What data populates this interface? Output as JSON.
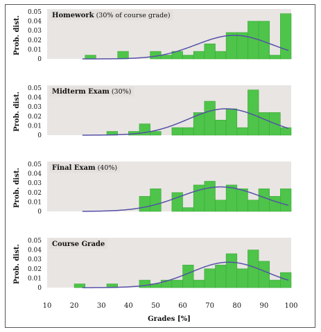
{
  "chart_data": [
    {
      "type": "bar",
      "title_bold": "Homework",
      "title_rest": " (30% of course grade)",
      "ylabel": "Prob. dist.",
      "yticks": [
        "0.05",
        "0.04",
        "0.03",
        "0.02",
        "0.01",
        "0"
      ],
      "ylim": [
        0,
        0.05
      ],
      "xlim": [
        10,
        100
      ],
      "bin_width": 4,
      "bins": [
        {
          "x": 22,
          "y": 0.0
        },
        {
          "x": 26,
          "y": 0.004
        },
        {
          "x": 30,
          "y": 0.0
        },
        {
          "x": 34,
          "y": 0.0
        },
        {
          "x": 38,
          "y": 0.008
        },
        {
          "x": 42,
          "y": 0.0
        },
        {
          "x": 46,
          "y": 0.0
        },
        {
          "x": 50,
          "y": 0.008
        },
        {
          "x": 54,
          "y": 0.004
        },
        {
          "x": 58,
          "y": 0.008
        },
        {
          "x": 62,
          "y": 0.004
        },
        {
          "x": 66,
          "y": 0.008
        },
        {
          "x": 70,
          "y": 0.016
        },
        {
          "x": 74,
          "y": 0.008
        },
        {
          "x": 78,
          "y": 0.028
        },
        {
          "x": 82,
          "y": 0.028
        },
        {
          "x": 86,
          "y": 0.04
        },
        {
          "x": 90,
          "y": 0.04
        },
        {
          "x": 94,
          "y": 0.004
        },
        {
          "x": 98,
          "y": 0.048
        }
      ],
      "fit": {
        "mean": 79,
        "sd": 14,
        "peak": 0.025,
        "xrange": [
          23,
          99
        ]
      }
    },
    {
      "type": "bar",
      "title_bold": "Midterm Exam",
      "title_rest": " (30%)",
      "ylabel": "Prob. dist.",
      "yticks": [
        "0.05",
        "0.04",
        "0.03",
        "0.02",
        "0.01",
        "0"
      ],
      "ylim": [
        0,
        0.05
      ],
      "xlim": [
        10,
        100
      ],
      "bin_width": 4,
      "bins": [
        {
          "x": 34,
          "y": 0.004
        },
        {
          "x": 38,
          "y": 0.0
        },
        {
          "x": 42,
          "y": 0.004
        },
        {
          "x": 46,
          "y": 0.012
        },
        {
          "x": 50,
          "y": 0.004
        },
        {
          "x": 54,
          "y": 0.0
        },
        {
          "x": 58,
          "y": 0.008
        },
        {
          "x": 62,
          "y": 0.008
        },
        {
          "x": 66,
          "y": 0.024
        },
        {
          "x": 70,
          "y": 0.036
        },
        {
          "x": 74,
          "y": 0.016
        },
        {
          "x": 78,
          "y": 0.028
        },
        {
          "x": 82,
          "y": 0.008
        },
        {
          "x": 86,
          "y": 0.048
        },
        {
          "x": 90,
          "y": 0.024
        },
        {
          "x": 94,
          "y": 0.024
        },
        {
          "x": 98,
          "y": 0.008
        }
      ],
      "fit": {
        "mean": 76,
        "sd": 14,
        "peak": 0.028,
        "xrange": [
          23,
          99
        ]
      }
    },
    {
      "type": "bar",
      "title_bold": "Final Exam",
      "title_rest": " (40%)",
      "ylabel": "Prob. dist.",
      "yticks": [
        "0.05",
        "0.04",
        "0.03",
        "0.02",
        "0.01",
        "0"
      ],
      "ylim": [
        0,
        0.05
      ],
      "xlim": [
        10,
        100
      ],
      "bin_width": 4,
      "bins": [
        {
          "x": 46,
          "y": 0.016
        },
        {
          "x": 50,
          "y": 0.024
        },
        {
          "x": 54,
          "y": 0.0
        },
        {
          "x": 58,
          "y": 0.02
        },
        {
          "x": 62,
          "y": 0.004
        },
        {
          "x": 66,
          "y": 0.028
        },
        {
          "x": 70,
          "y": 0.032
        },
        {
          "x": 74,
          "y": 0.012
        },
        {
          "x": 78,
          "y": 0.028
        },
        {
          "x": 82,
          "y": 0.024
        },
        {
          "x": 86,
          "y": 0.012
        },
        {
          "x": 90,
          "y": 0.024
        },
        {
          "x": 94,
          "y": 0.016
        },
        {
          "x": 98,
          "y": 0.024
        }
      ],
      "fit": {
        "mean": 74,
        "sd": 15,
        "peak": 0.026,
        "xrange": [
          23,
          99
        ]
      }
    },
    {
      "type": "bar",
      "title_bold": "Course Grade",
      "title_rest": "",
      "ylabel": "Prob. dist.",
      "yticks": [
        "0.05",
        "0.04",
        "0.03",
        "0.02",
        "0.01",
        "0"
      ],
      "ylim": [
        0,
        0.05
      ],
      "xlim": [
        10,
        100
      ],
      "bin_width": 4,
      "bins": [
        {
          "x": 22,
          "y": 0.004
        },
        {
          "x": 26,
          "y": 0.0
        },
        {
          "x": 30,
          "y": 0.0
        },
        {
          "x": 34,
          "y": 0.004
        },
        {
          "x": 38,
          "y": 0.0
        },
        {
          "x": 42,
          "y": 0.0
        },
        {
          "x": 46,
          "y": 0.008
        },
        {
          "x": 50,
          "y": 0.004
        },
        {
          "x": 54,
          "y": 0.008
        },
        {
          "x": 58,
          "y": 0.008
        },
        {
          "x": 62,
          "y": 0.024
        },
        {
          "x": 66,
          "y": 0.008
        },
        {
          "x": 70,
          "y": 0.02
        },
        {
          "x": 74,
          "y": 0.024
        },
        {
          "x": 78,
          "y": 0.036
        },
        {
          "x": 82,
          "y": 0.02
        },
        {
          "x": 86,
          "y": 0.04
        },
        {
          "x": 90,
          "y": 0.028
        },
        {
          "x": 94,
          "y": 0.008
        },
        {
          "x": 98,
          "y": 0.016
        }
      ],
      "fit": {
        "mean": 77,
        "sd": 14,
        "peak": 0.027,
        "xrange": [
          23,
          99
        ]
      }
    }
  ],
  "xaxis": {
    "ticks": [
      "10",
      "20",
      "30",
      "40",
      "50",
      "60",
      "70",
      "80",
      "90",
      "100"
    ],
    "label": "Grades [%]"
  },
  "colors": {
    "bar": "#4ec44a",
    "curve": "#5550a8",
    "panel": "#e9e5e3"
  }
}
